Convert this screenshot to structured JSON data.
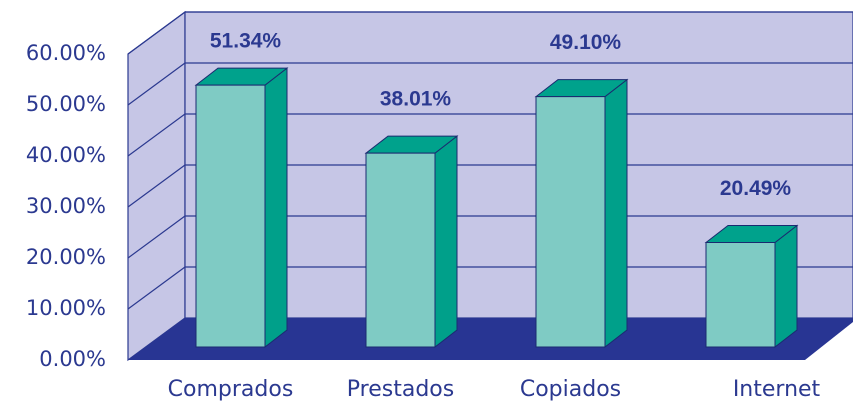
{
  "chart_data": {
    "type": "bar",
    "categories": [
      "Comprados",
      "Prestados",
      "Copiados",
      "Internet"
    ],
    "values": [
      51.34,
      38.01,
      49.1,
      20.49
    ],
    "value_labels": [
      "51.34%",
      "38.01%",
      "49.10%",
      "20.49%"
    ],
    "ylim": [
      0,
      60
    ],
    "yticks": [
      {
        "value": 0,
        "label": "0.00%"
      },
      {
        "value": 10,
        "label": "10.00%"
      },
      {
        "value": 20,
        "label": "20.00%"
      },
      {
        "value": 30,
        "label": "30.00%"
      },
      {
        "value": 40,
        "label": "40.00%"
      },
      {
        "value": 50,
        "label": "50.00%"
      },
      {
        "value": 60,
        "label": "60.00%"
      }
    ],
    "grid": true,
    "colors": {
      "front": "#7fcbc4",
      "top": "#00a28c",
      "side": "#00a08a"
    }
  }
}
